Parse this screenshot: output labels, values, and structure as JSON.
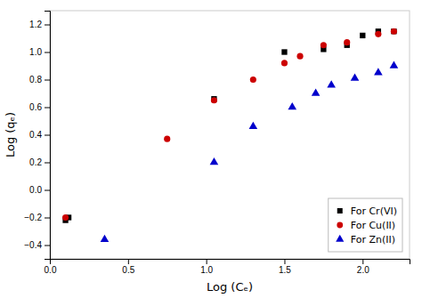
{
  "chart_data": {
    "type": "scatter",
    "xlabel": "Log (Cₑ)",
    "ylabel": "Log (qₑ)",
    "series": [
      {
        "name": "For Cr(VI)",
        "color": "#000000",
        "marker": "square",
        "x": [
          0.1,
          0.12,
          1.05,
          1.5,
          1.75,
          1.9,
          2.0,
          2.1,
          2.2
        ],
        "values": [
          -0.22,
          -0.2,
          0.66,
          1.0,
          1.02,
          1.05,
          1.12,
          1.15,
          1.15
        ]
      },
      {
        "name": "For Cu(II)",
        "color": "#cc0000",
        "marker": "circle",
        "x": [
          0.1,
          0.75,
          1.05,
          1.3,
          1.5,
          1.6,
          1.75,
          1.9,
          2.1,
          2.2
        ],
        "values": [
          -0.2,
          0.37,
          0.65,
          0.8,
          0.92,
          0.97,
          1.05,
          1.07,
          1.13,
          1.15
        ]
      },
      {
        "name": "For Zn(II)",
        "color": "#0000cc",
        "marker": "triangle",
        "x": [
          0.35,
          1.05,
          1.3,
          1.55,
          1.7,
          1.8,
          1.95,
          2.1,
          2.2
        ],
        "values": [
          -0.36,
          0.2,
          0.46,
          0.6,
          0.7,
          0.76,
          0.81,
          0.85,
          0.9
        ]
      }
    ],
    "xlim": [
      0.0,
      2.3
    ],
    "ylim": [
      -0.5,
      1.3
    ],
    "xticks": [
      {
        "value": 0.0,
        "label": "0.0"
      },
      0.5,
      {
        "value": 1.0,
        "label": "1.0"
      },
      1.5,
      {
        "value": 2.0,
        "label": "2.0"
      }
    ],
    "yticks": [
      {
        "value": -0.4,
        "label": "−0.4"
      },
      {
        "value": -0.2,
        "label": "−0.2"
      },
      {
        "value": 0.0,
        "label": "0.0"
      },
      0.2,
      0.4,
      0.6,
      0.8,
      {
        "value": 1.0,
        "label": "1.0"
      },
      1.2
    ],
    "grid": false,
    "legend": "lower-right"
  }
}
